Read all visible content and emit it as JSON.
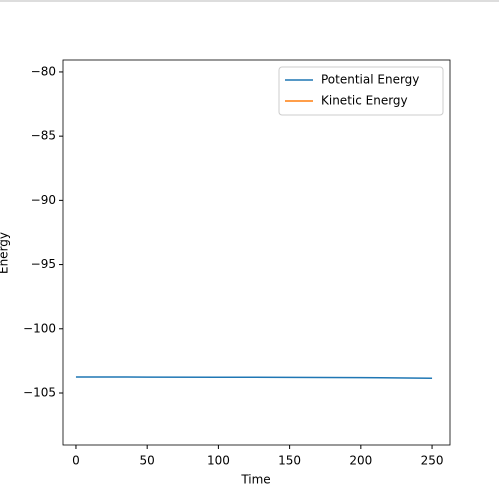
{
  "chart_data": {
    "type": "line",
    "x_label": "Time",
    "y_label": "Energy",
    "x": [
      0,
      50,
      100,
      150,
      200,
      250
    ],
    "series": [
      {
        "name": "Potential Energy",
        "color": "#1f77b4",
        "values": [
          -103.75,
          -103.76,
          -103.77,
          -103.78,
          -103.8,
          -103.85
        ]
      },
      {
        "name": "Kinetic Energy",
        "color": "#ff7f0e",
        "values": [
          null,
          null,
          null,
          null,
          null,
          null
        ]
      }
    ],
    "xlim": [
      -9.1,
      262.6
    ],
    "xticks": [
      0,
      50,
      100,
      150,
      200,
      250
    ],
    "ylim": [
      -109.05,
      -79.07
    ],
    "yticks": [
      {
        "value": -105,
        "label": "−105"
      },
      {
        "value": -100,
        "label": "−100"
      },
      {
        "value": -95,
        "label": "−95"
      },
      {
        "value": -90,
        "label": "−90"
      },
      {
        "value": -85,
        "label": "−85"
      },
      {
        "value": -80,
        "label": "−80"
      }
    ],
    "legend": "upper right"
  }
}
